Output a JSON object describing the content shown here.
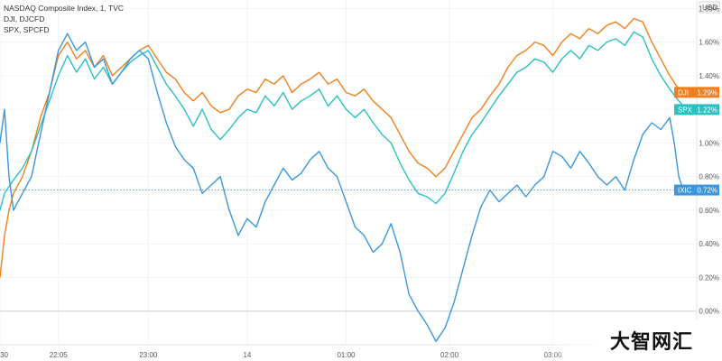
{
  "chart_data": {
    "type": "line",
    "legend": [
      {
        "label": "NASDAQ Composite Index, 1, TVC"
      },
      {
        "label": "DJI, DJCFD"
      },
      {
        "label": "SPX, SPCFD"
      }
    ],
    "currency_label": "USD",
    "y_ticks": [
      "1.80%",
      "1.60%",
      "1.40%",
      "1.20%",
      "1.00%",
      "0.80%",
      "0.60%",
      "0.40%",
      "0.20%",
      "0.00%"
    ],
    "y_tick_values": [
      1.8,
      1.6,
      1.4,
      1.2,
      1.0,
      0.8,
      0.6,
      0.4,
      0.2,
      0.0
    ],
    "x_ticks": [
      "30",
      "22:05",
      "23:00",
      "14",
      "01:00",
      "02:00",
      "03:00"
    ],
    "x_tick_positions": [
      0,
      13,
      33,
      55,
      77,
      100,
      123
    ],
    "ylim": [
      -0.2,
      1.85
    ],
    "xlim": [
      0,
      155
    ],
    "grid": true,
    "series": [
      {
        "name": "DJI",
        "color": "#f07f1e",
        "last_label": "DJI",
        "last_value": "1.29%",
        "points": [
          [
            0,
            0.2
          ],
          [
            1,
            0.45
          ],
          [
            2,
            0.6
          ],
          [
            3,
            0.7
          ],
          [
            5,
            0.8
          ],
          [
            7,
            0.95
          ],
          [
            9,
            1.15
          ],
          [
            11,
            1.3
          ],
          [
            13,
            1.52
          ],
          [
            15,
            1.6
          ],
          [
            17,
            1.5
          ],
          [
            19,
            1.55
          ],
          [
            21,
            1.45
          ],
          [
            23,
            1.52
          ],
          [
            25,
            1.4
          ],
          [
            27,
            1.45
          ],
          [
            29,
            1.5
          ],
          [
            31,
            1.55
          ],
          [
            33,
            1.58
          ],
          [
            35,
            1.5
          ],
          [
            37,
            1.42
          ],
          [
            39,
            1.38
          ],
          [
            41,
            1.3
          ],
          [
            43,
            1.25
          ],
          [
            45,
            1.3
          ],
          [
            47,
            1.22
          ],
          [
            49,
            1.18
          ],
          [
            51,
            1.2
          ],
          [
            53,
            1.28
          ],
          [
            55,
            1.32
          ],
          [
            57,
            1.3
          ],
          [
            59,
            1.38
          ],
          [
            61,
            1.35
          ],
          [
            63,
            1.4
          ],
          [
            65,
            1.3
          ],
          [
            67,
            1.35
          ],
          [
            69,
            1.38
          ],
          [
            71,
            1.42
          ],
          [
            73,
            1.35
          ],
          [
            75,
            1.38
          ],
          [
            77,
            1.3
          ],
          [
            79,
            1.28
          ],
          [
            81,
            1.32
          ],
          [
            83,
            1.25
          ],
          [
            85,
            1.2
          ],
          [
            87,
            1.15
          ],
          [
            89,
            1.05
          ],
          [
            91,
            0.95
          ],
          [
            93,
            0.88
          ],
          [
            95,
            0.85
          ],
          [
            97,
            0.8
          ],
          [
            99,
            0.85
          ],
          [
            101,
            0.95
          ],
          [
            103,
            1.05
          ],
          [
            105,
            1.15
          ],
          [
            107,
            1.2
          ],
          [
            109,
            1.28
          ],
          [
            111,
            1.35
          ],
          [
            113,
            1.45
          ],
          [
            115,
            1.52
          ],
          [
            117,
            1.55
          ],
          [
            119,
            1.6
          ],
          [
            121,
            1.58
          ],
          [
            123,
            1.52
          ],
          [
            125,
            1.6
          ],
          [
            127,
            1.65
          ],
          [
            129,
            1.62
          ],
          [
            131,
            1.68
          ],
          [
            133,
            1.65
          ],
          [
            135,
            1.7
          ],
          [
            137,
            1.72
          ],
          [
            139,
            1.68
          ],
          [
            141,
            1.74
          ],
          [
            143,
            1.72
          ],
          [
            145,
            1.6
          ],
          [
            147,
            1.5
          ],
          [
            149,
            1.4
          ],
          [
            151,
            1.32
          ],
          [
            152,
            1.29
          ]
        ]
      },
      {
        "name": "SPX",
        "color": "#29c1c1",
        "last_label": "SPX",
        "last_value": "1.22%",
        "points": [
          [
            0,
            0.6
          ],
          [
            1,
            0.7
          ],
          [
            3,
            0.78
          ],
          [
            5,
            0.85
          ],
          [
            7,
            0.95
          ],
          [
            9,
            1.1
          ],
          [
            11,
            1.25
          ],
          [
            13,
            1.4
          ],
          [
            15,
            1.52
          ],
          [
            17,
            1.42
          ],
          [
            19,
            1.5
          ],
          [
            21,
            1.38
          ],
          [
            23,
            1.45
          ],
          [
            25,
            1.35
          ],
          [
            27,
            1.42
          ],
          [
            29,
            1.48
          ],
          [
            31,
            1.52
          ],
          [
            33,
            1.55
          ],
          [
            35,
            1.45
          ],
          [
            37,
            1.35
          ],
          [
            39,
            1.28
          ],
          [
            41,
            1.2
          ],
          [
            43,
            1.1
          ],
          [
            45,
            1.2
          ],
          [
            47,
            1.08
          ],
          [
            49,
            1.02
          ],
          [
            51,
            1.08
          ],
          [
            53,
            1.15
          ],
          [
            55,
            1.2
          ],
          [
            57,
            1.18
          ],
          [
            59,
            1.28
          ],
          [
            61,
            1.22
          ],
          [
            63,
            1.3
          ],
          [
            65,
            1.2
          ],
          [
            67,
            1.25
          ],
          [
            69,
            1.28
          ],
          [
            71,
            1.32
          ],
          [
            73,
            1.22
          ],
          [
            75,
            1.28
          ],
          [
            77,
            1.2
          ],
          [
            79,
            1.15
          ],
          [
            81,
            1.2
          ],
          [
            83,
            1.12
          ],
          [
            85,
            1.05
          ],
          [
            87,
            1.0
          ],
          [
            89,
            0.88
          ],
          [
            91,
            0.78
          ],
          [
            93,
            0.7
          ],
          [
            95,
            0.68
          ],
          [
            97,
            0.64
          ],
          [
            99,
            0.7
          ],
          [
            101,
            0.82
          ],
          [
            103,
            0.95
          ],
          [
            105,
            1.05
          ],
          [
            107,
            1.12
          ],
          [
            109,
            1.2
          ],
          [
            111,
            1.28
          ],
          [
            113,
            1.35
          ],
          [
            115,
            1.42
          ],
          [
            117,
            1.45
          ],
          [
            119,
            1.5
          ],
          [
            121,
            1.48
          ],
          [
            123,
            1.42
          ],
          [
            125,
            1.5
          ],
          [
            127,
            1.55
          ],
          [
            129,
            1.5
          ],
          [
            131,
            1.58
          ],
          [
            133,
            1.55
          ],
          [
            135,
            1.6
          ],
          [
            137,
            1.62
          ],
          [
            139,
            1.58
          ],
          [
            141,
            1.66
          ],
          [
            143,
            1.63
          ],
          [
            145,
            1.5
          ],
          [
            147,
            1.4
          ],
          [
            149,
            1.32
          ],
          [
            151,
            1.25
          ],
          [
            152,
            1.22
          ]
        ]
      },
      {
        "name": "IXIC",
        "color": "#3a96dd",
        "last_label": "IXIC",
        "last_value": "0.72%",
        "points": [
          [
            0,
            1.0
          ],
          [
            1,
            1.2
          ],
          [
            2,
            0.8
          ],
          [
            3,
            0.6
          ],
          [
            5,
            0.7
          ],
          [
            7,
            0.8
          ],
          [
            9,
            1.05
          ],
          [
            11,
            1.3
          ],
          [
            13,
            1.55
          ],
          [
            15,
            1.65
          ],
          [
            17,
            1.55
          ],
          [
            19,
            1.6
          ],
          [
            21,
            1.45
          ],
          [
            23,
            1.5
          ],
          [
            25,
            1.35
          ],
          [
            27,
            1.42
          ],
          [
            29,
            1.5
          ],
          [
            31,
            1.55
          ],
          [
            33,
            1.5
          ],
          [
            35,
            1.3
          ],
          [
            37,
            1.12
          ],
          [
            39,
            0.98
          ],
          [
            41,
            0.9
          ],
          [
            43,
            0.85
          ],
          [
            45,
            0.7
          ],
          [
            47,
            0.75
          ],
          [
            49,
            0.8
          ],
          [
            51,
            0.6
          ],
          [
            53,
            0.45
          ],
          [
            55,
            0.55
          ],
          [
            57,
            0.5
          ],
          [
            59,
            0.65
          ],
          [
            61,
            0.75
          ],
          [
            63,
            0.85
          ],
          [
            65,
            0.78
          ],
          [
            67,
            0.82
          ],
          [
            69,
            0.9
          ],
          [
            71,
            0.95
          ],
          [
            73,
            0.85
          ],
          [
            75,
            0.8
          ],
          [
            77,
            0.65
          ],
          [
            79,
            0.5
          ],
          [
            81,
            0.45
          ],
          [
            83,
            0.35
          ],
          [
            85,
            0.4
          ],
          [
            87,
            0.52
          ],
          [
            89,
            0.35
          ],
          [
            91,
            0.1
          ],
          [
            93,
            0.0
          ],
          [
            95,
            -0.08
          ],
          [
            97,
            -0.18
          ],
          [
            99,
            -0.1
          ],
          [
            101,
            0.05
          ],
          [
            103,
            0.25
          ],
          [
            105,
            0.45
          ],
          [
            107,
            0.62
          ],
          [
            109,
            0.72
          ],
          [
            111,
            0.65
          ],
          [
            113,
            0.7
          ],
          [
            115,
            0.75
          ],
          [
            117,
            0.68
          ],
          [
            119,
            0.75
          ],
          [
            121,
            0.8
          ],
          [
            123,
            0.95
          ],
          [
            125,
            0.92
          ],
          [
            127,
            0.85
          ],
          [
            129,
            0.95
          ],
          [
            131,
            0.88
          ],
          [
            133,
            0.8
          ],
          [
            135,
            0.75
          ],
          [
            137,
            0.8
          ],
          [
            139,
            0.72
          ],
          [
            141,
            0.9
          ],
          [
            143,
            1.05
          ],
          [
            145,
            1.12
          ],
          [
            147,
            1.08
          ],
          [
            149,
            1.15
          ],
          [
            150,
            1.0
          ],
          [
            151,
            0.8
          ],
          [
            152,
            0.72
          ]
        ]
      }
    ]
  },
  "watermark": "大智网汇"
}
